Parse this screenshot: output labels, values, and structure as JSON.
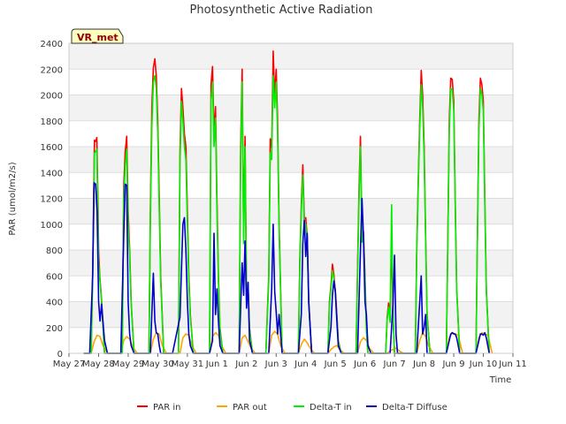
{
  "chart_data": {
    "type": "line",
    "title": "Photosynthetic Active Radiation",
    "xlabel": "Time",
    "ylabel": "PAR (umol/m2/s)",
    "site_label": "VR_met",
    "ylim": [
      0,
      2400
    ],
    "yticks": [
      0,
      200,
      400,
      600,
      800,
      1000,
      1200,
      1400,
      1600,
      1800,
      2000,
      2200,
      2400
    ],
    "xlim": [
      0,
      15
    ],
    "xticks": [
      {
        "value": 0,
        "label": "May 27"
      },
      {
        "value": 1,
        "label": "May 28"
      },
      {
        "value": 2,
        "label": "May 29"
      },
      {
        "value": 3,
        "label": "May 30"
      },
      {
        "value": 4,
        "label": "May 31"
      },
      {
        "value": 5,
        "label": "Jun 1"
      },
      {
        "value": 6,
        "label": "Jun 2"
      },
      {
        "value": 7,
        "label": "Jun 3"
      },
      {
        "value": 8,
        "label": "Jun 4"
      },
      {
        "value": 9,
        "label": "Jun 5"
      },
      {
        "value": 10,
        "label": "Jun 6"
      },
      {
        "value": 11,
        "label": "Jun 7"
      },
      {
        "value": 12,
        "label": "Jun 8"
      },
      {
        "value": 13,
        "label": "Jun 9"
      },
      {
        "value": 14,
        "label": "Jun 10"
      },
      {
        "value": 15,
        "label": "Jun 11"
      }
    ],
    "grid": true,
    "legend": "bottom",
    "series": [
      {
        "name": "PAR in",
        "color": "#ff0000",
        "x": [
          0.5,
          0.75,
          0.8,
          0.86,
          0.9,
          0.94,
          0.98,
          1.0,
          1.04,
          1.1,
          1.2,
          1.5,
          1.8,
          1.85,
          1.9,
          1.95,
          2.0,
          2.05,
          2.1,
          2.2,
          2.5,
          2.7,
          2.75,
          2.8,
          2.85,
          2.9,
          2.95,
          3.0,
          3.05,
          3.1,
          3.2,
          3.3,
          3.5,
          3.7,
          3.75,
          3.8,
          3.85,
          3.9,
          3.95,
          4.0,
          4.05,
          4.1,
          4.2,
          4.5,
          4.75,
          4.8,
          4.85,
          4.9,
          4.95,
          5.0,
          5.05,
          5.1,
          5.2,
          5.5,
          5.75,
          5.8,
          5.85,
          5.9,
          5.95,
          6.0,
          6.05,
          6.1,
          6.2,
          6.5,
          6.65,
          6.75,
          6.8,
          6.85,
          6.9,
          6.95,
          7.0,
          7.05,
          7.1,
          7.2,
          7.5,
          7.75,
          7.8,
          7.85,
          7.9,
          7.95,
          8.0,
          8.05,
          8.1,
          8.2,
          8.5,
          8.75,
          8.8,
          8.85,
          8.9,
          8.95,
          9.0,
          9.05,
          9.1,
          9.2,
          9.5,
          9.7,
          9.75,
          9.8,
          9.85,
          9.9,
          9.95,
          10.0,
          10.05,
          10.1,
          10.2,
          10.5,
          10.7,
          10.75,
          10.8,
          10.85,
          10.9,
          10.95,
          11.0,
          11.05,
          11.1,
          11.2,
          11.5,
          11.7,
          11.75,
          11.8,
          11.85,
          11.9,
          11.95,
          12.0,
          12.05,
          12.1,
          12.2,
          12.5,
          12.7,
          12.75,
          12.8,
          12.85,
          12.9,
          12.95,
          13.0,
          13.05,
          13.1,
          13.2,
          13.5,
          13.7,
          13.75,
          13.8,
          13.85,
          13.9,
          13.95,
          14.0,
          14.05,
          14.1,
          14.2
        ],
        "y": [
          0,
          0,
          640,
          1650,
          1640,
          1670,
          1150,
          800,
          600,
          420,
          0,
          0,
          0,
          1290,
          1560,
          1680,
          1100,
          800,
          400,
          0,
          0,
          0,
          1100,
          1900,
          2210,
          2280,
          2150,
          1800,
          1200,
          600,
          0,
          0,
          0,
          0,
          1560,
          2050,
          1900,
          1700,
          1600,
          1100,
          600,
          300,
          0,
          0,
          0,
          2080,
          2220,
          1690,
          1910,
          1200,
          600,
          200,
          0,
          0,
          0,
          1600,
          2200,
          900,
          1680,
          400,
          540,
          200,
          0,
          0,
          0,
          600,
          1660,
          1590,
          2340,
          1990,
          2200,
          1800,
          1000,
          0,
          0,
          0,
          720,
          1150,
          1460,
          1040,
          1050,
          900,
          400,
          0,
          0,
          0,
          400,
          520,
          690,
          610,
          480,
          300,
          100,
          0,
          0,
          0,
          660,
          1280,
          1680,
          900,
          940,
          600,
          200,
          0,
          0,
          0,
          0,
          280,
          390,
          260,
          890,
          300,
          0,
          0,
          0,
          0,
          0,
          0,
          800,
          1330,
          1800,
          2190,
          2000,
          1600,
          900,
          300,
          0,
          0,
          0,
          0,
          900,
          1800,
          2130,
          2120,
          1950,
          1200,
          500,
          0,
          0,
          0,
          0,
          900,
          1800,
          2130,
          2080,
          1950,
          1200,
          500,
          0
        ]
      },
      {
        "name": "PAR out",
        "color": "#ffa500",
        "x": [
          0.5,
          0.75,
          0.85,
          0.95,
          1.05,
          1.15,
          1.3,
          1.5,
          1.75,
          1.85,
          1.95,
          2.05,
          2.15,
          2.3,
          2.5,
          2.75,
          2.85,
          2.95,
          3.05,
          3.15,
          3.3,
          3.5,
          3.75,
          3.85,
          3.95,
          4.05,
          4.15,
          4.3,
          4.5,
          4.75,
          4.85,
          4.95,
          5.05,
          5.15,
          5.3,
          5.5,
          5.75,
          5.85,
          5.95,
          6.05,
          6.15,
          6.3,
          6.5,
          6.75,
          6.85,
          6.95,
          7.05,
          7.15,
          7.3,
          7.5,
          7.75,
          7.85,
          7.95,
          8.05,
          8.15,
          8.3,
          8.5,
          8.75,
          8.85,
          8.95,
          9.05,
          9.15,
          9.3,
          9.5,
          9.75,
          9.85,
          9.95,
          10.05,
          10.15,
          10.3,
          10.5,
          10.75,
          10.85,
          10.95,
          11.05,
          11.15,
          11.3,
          11.5,
          11.75,
          11.85,
          11.95,
          12.05,
          12.15,
          12.3,
          12.5,
          12.75,
          12.85,
          12.95,
          13.05,
          13.15,
          13.3,
          13.5,
          13.75,
          13.85,
          13.95,
          14.05,
          14.15,
          14.3
        ],
        "y": [
          0,
          0,
          90,
          140,
          130,
          60,
          0,
          0,
          0,
          100,
          130,
          110,
          50,
          0,
          0,
          0,
          110,
          160,
          150,
          60,
          0,
          0,
          0,
          120,
          150,
          140,
          60,
          0,
          0,
          0,
          130,
          160,
          140,
          60,
          0,
          0,
          0,
          120,
          140,
          90,
          40,
          0,
          0,
          0,
          140,
          170,
          150,
          60,
          0,
          0,
          0,
          70,
          110,
          80,
          40,
          0,
          0,
          0,
          30,
          50,
          60,
          30,
          0,
          0,
          0,
          90,
          120,
          100,
          40,
          0,
          0,
          0,
          20,
          30,
          40,
          20,
          0,
          0,
          0,
          100,
          160,
          130,
          60,
          0,
          0,
          0,
          120,
          160,
          150,
          140,
          0,
          0,
          0,
          120,
          160,
          150,
          140,
          0
        ]
      },
      {
        "name": "Delta-T in",
        "color": "#00ee00",
        "x": [
          0.5,
          0.75,
          0.8,
          0.86,
          0.9,
          0.94,
          0.98,
          1.0,
          1.04,
          1.1,
          1.2,
          1.5,
          1.8,
          1.85,
          1.9,
          1.95,
          2.0,
          2.05,
          2.1,
          2.2,
          2.5,
          2.7,
          2.75,
          2.8,
          2.85,
          2.9,
          2.95,
          3.0,
          3.05,
          3.1,
          3.2,
          3.3,
          3.5,
          3.7,
          3.75,
          3.8,
          3.85,
          3.9,
          3.95,
          4.0,
          4.05,
          4.1,
          4.2,
          4.5,
          4.75,
          4.8,
          4.85,
          4.9,
          4.95,
          5.0,
          5.05,
          5.1,
          5.2,
          5.5,
          5.75,
          5.8,
          5.85,
          5.9,
          5.95,
          6.0,
          6.05,
          6.1,
          6.2,
          6.5,
          6.65,
          6.75,
          6.8,
          6.85,
          6.9,
          6.95,
          7.0,
          7.05,
          7.1,
          7.2,
          7.5,
          7.75,
          7.8,
          7.85,
          7.9,
          7.95,
          8.0,
          8.05,
          8.1,
          8.2,
          8.5,
          8.75,
          8.8,
          8.85,
          8.9,
          8.95,
          9.0,
          9.05,
          9.1,
          9.2,
          9.5,
          9.7,
          9.75,
          9.8,
          9.85,
          9.9,
          9.95,
          10.0,
          10.05,
          10.1,
          10.2,
          10.5,
          10.7,
          10.75,
          10.8,
          10.85,
          10.9,
          10.95,
          11.0,
          11.05,
          11.1,
          11.2,
          11.5,
          11.7,
          11.75,
          11.8,
          11.85,
          11.9,
          11.95,
          12.0,
          12.05,
          12.1,
          12.2,
          12.5,
          12.7,
          12.75,
          12.8,
          12.85,
          12.9,
          12.95,
          13.0,
          13.05,
          13.1,
          13.2,
          13.5,
          13.7,
          13.75,
          13.8,
          13.85,
          13.9,
          13.95,
          14.0,
          14.05,
          14.1,
          14.2
        ],
        "y": [
          0,
          0,
          600,
          1550,
          1560,
          1580,
          1000,
          700,
          580,
          400,
          0,
          0,
          0,
          1200,
          1450,
          1580,
          1000,
          750,
          380,
          0,
          0,
          0,
          1000,
          1750,
          2100,
          2150,
          2050,
          1700,
          1100,
          560,
          0,
          0,
          0,
          0,
          1450,
          1950,
          1800,
          1600,
          1500,
          1000,
          560,
          280,
          0,
          0,
          0,
          1950,
          2100,
          1600,
          1820,
          1100,
          560,
          180,
          0,
          0,
          0,
          1500,
          2100,
          850,
          1600,
          380,
          520,
          180,
          0,
          0,
          0,
          560,
          1550,
          1500,
          2150,
          1900,
          2100,
          1700,
          950,
          0,
          0,
          0,
          680,
          1100,
          1380,
          1000,
          1000,
          860,
          380,
          0,
          0,
          0,
          380,
          500,
          640,
          580,
          460,
          280,
          90,
          0,
          0,
          0,
          620,
          1200,
          1600,
          860,
          900,
          560,
          180,
          0,
          0,
          0,
          0,
          260,
          360,
          240,
          1150,
          280,
          0,
          0,
          0,
          0,
          0,
          0,
          760,
          1280,
          1740,
          2080,
          1900,
          1520,
          860,
          280,
          0,
          0,
          0,
          0,
          860,
          1720,
          2050,
          2040,
          1880,
          1150,
          480,
          0,
          0,
          0,
          0,
          860,
          1720,
          2050,
          2000,
          1880,
          1150,
          480,
          0
        ]
      },
      {
        "name": "Delta-T Diffuse",
        "color": "#0000cc",
        "x": [
          0.5,
          0.7,
          0.8,
          0.85,
          0.9,
          0.95,
          1.0,
          1.05,
          1.1,
          1.2,
          1.3,
          1.5,
          1.75,
          1.85,
          1.9,
          1.95,
          2.0,
          2.05,
          2.1,
          2.2,
          2.5,
          2.75,
          2.85,
          2.9,
          2.95,
          3.0,
          3.05,
          3.1,
          3.2,
          3.5,
          3.75,
          3.85,
          3.9,
          3.95,
          4.0,
          4.05,
          4.1,
          4.2,
          4.5,
          4.75,
          4.85,
          4.9,
          4.95,
          5.0,
          5.05,
          5.1,
          5.2,
          5.5,
          5.75,
          5.85,
          5.9,
          5.95,
          6.0,
          6.05,
          6.1,
          6.2,
          6.5,
          6.75,
          6.85,
          6.9,
          6.95,
          7.0,
          7.05,
          7.1,
          7.2,
          7.5,
          7.75,
          7.85,
          7.9,
          7.95,
          8.0,
          8.05,
          8.1,
          8.2,
          8.5,
          8.75,
          8.85,
          8.9,
          8.95,
          9.0,
          9.05,
          9.1,
          9.2,
          9.5,
          9.75,
          9.85,
          9.9,
          9.95,
          10.0,
          10.05,
          10.1,
          10.2,
          10.5,
          10.75,
          10.85,
          10.9,
          10.95,
          11.0,
          11.05,
          11.1,
          11.2,
          11.5,
          11.75,
          11.85,
          11.9,
          11.95,
          12.0,
          12.05,
          12.1,
          12.2,
          12.5,
          12.75,
          12.85,
          12.9,
          12.95,
          13.0,
          13.05,
          13.1,
          13.2,
          13.5,
          13.75,
          13.85,
          13.9,
          13.95,
          14.0,
          14.05,
          14.1,
          14.2
        ],
        "y": [
          0,
          0,
          600,
          1320,
          1310,
          1100,
          400,
          250,
          380,
          100,
          0,
          0,
          0,
          900,
          1310,
          1300,
          400,
          150,
          60,
          0,
          0,
          0,
          620,
          250,
          160,
          150,
          60,
          0,
          0,
          0,
          280,
          1000,
          1050,
          800,
          400,
          150,
          60,
          0,
          0,
          0,
          100,
          930,
          300,
          500,
          250,
          60,
          0,
          0,
          0,
          700,
          450,
          870,
          350,
          550,
          100,
          0,
          0,
          0,
          500,
          1000,
          480,
          320,
          150,
          300,
          0,
          0,
          0,
          300,
          850,
          1030,
          750,
          930,
          400,
          0,
          0,
          0,
          200,
          450,
          560,
          480,
          250,
          60,
          0,
          0,
          0,
          800,
          1200,
          900,
          400,
          300,
          60,
          0,
          0,
          0,
          0,
          200,
          400,
          760,
          150,
          0,
          0,
          0,
          0,
          400,
          600,
          150,
          200,
          300,
          0,
          0,
          0,
          0,
          100,
          150,
          160,
          150,
          150,
          120,
          0,
          0,
          0,
          100,
          150,
          150,
          140,
          160,
          120,
          0
        ]
      }
    ]
  }
}
